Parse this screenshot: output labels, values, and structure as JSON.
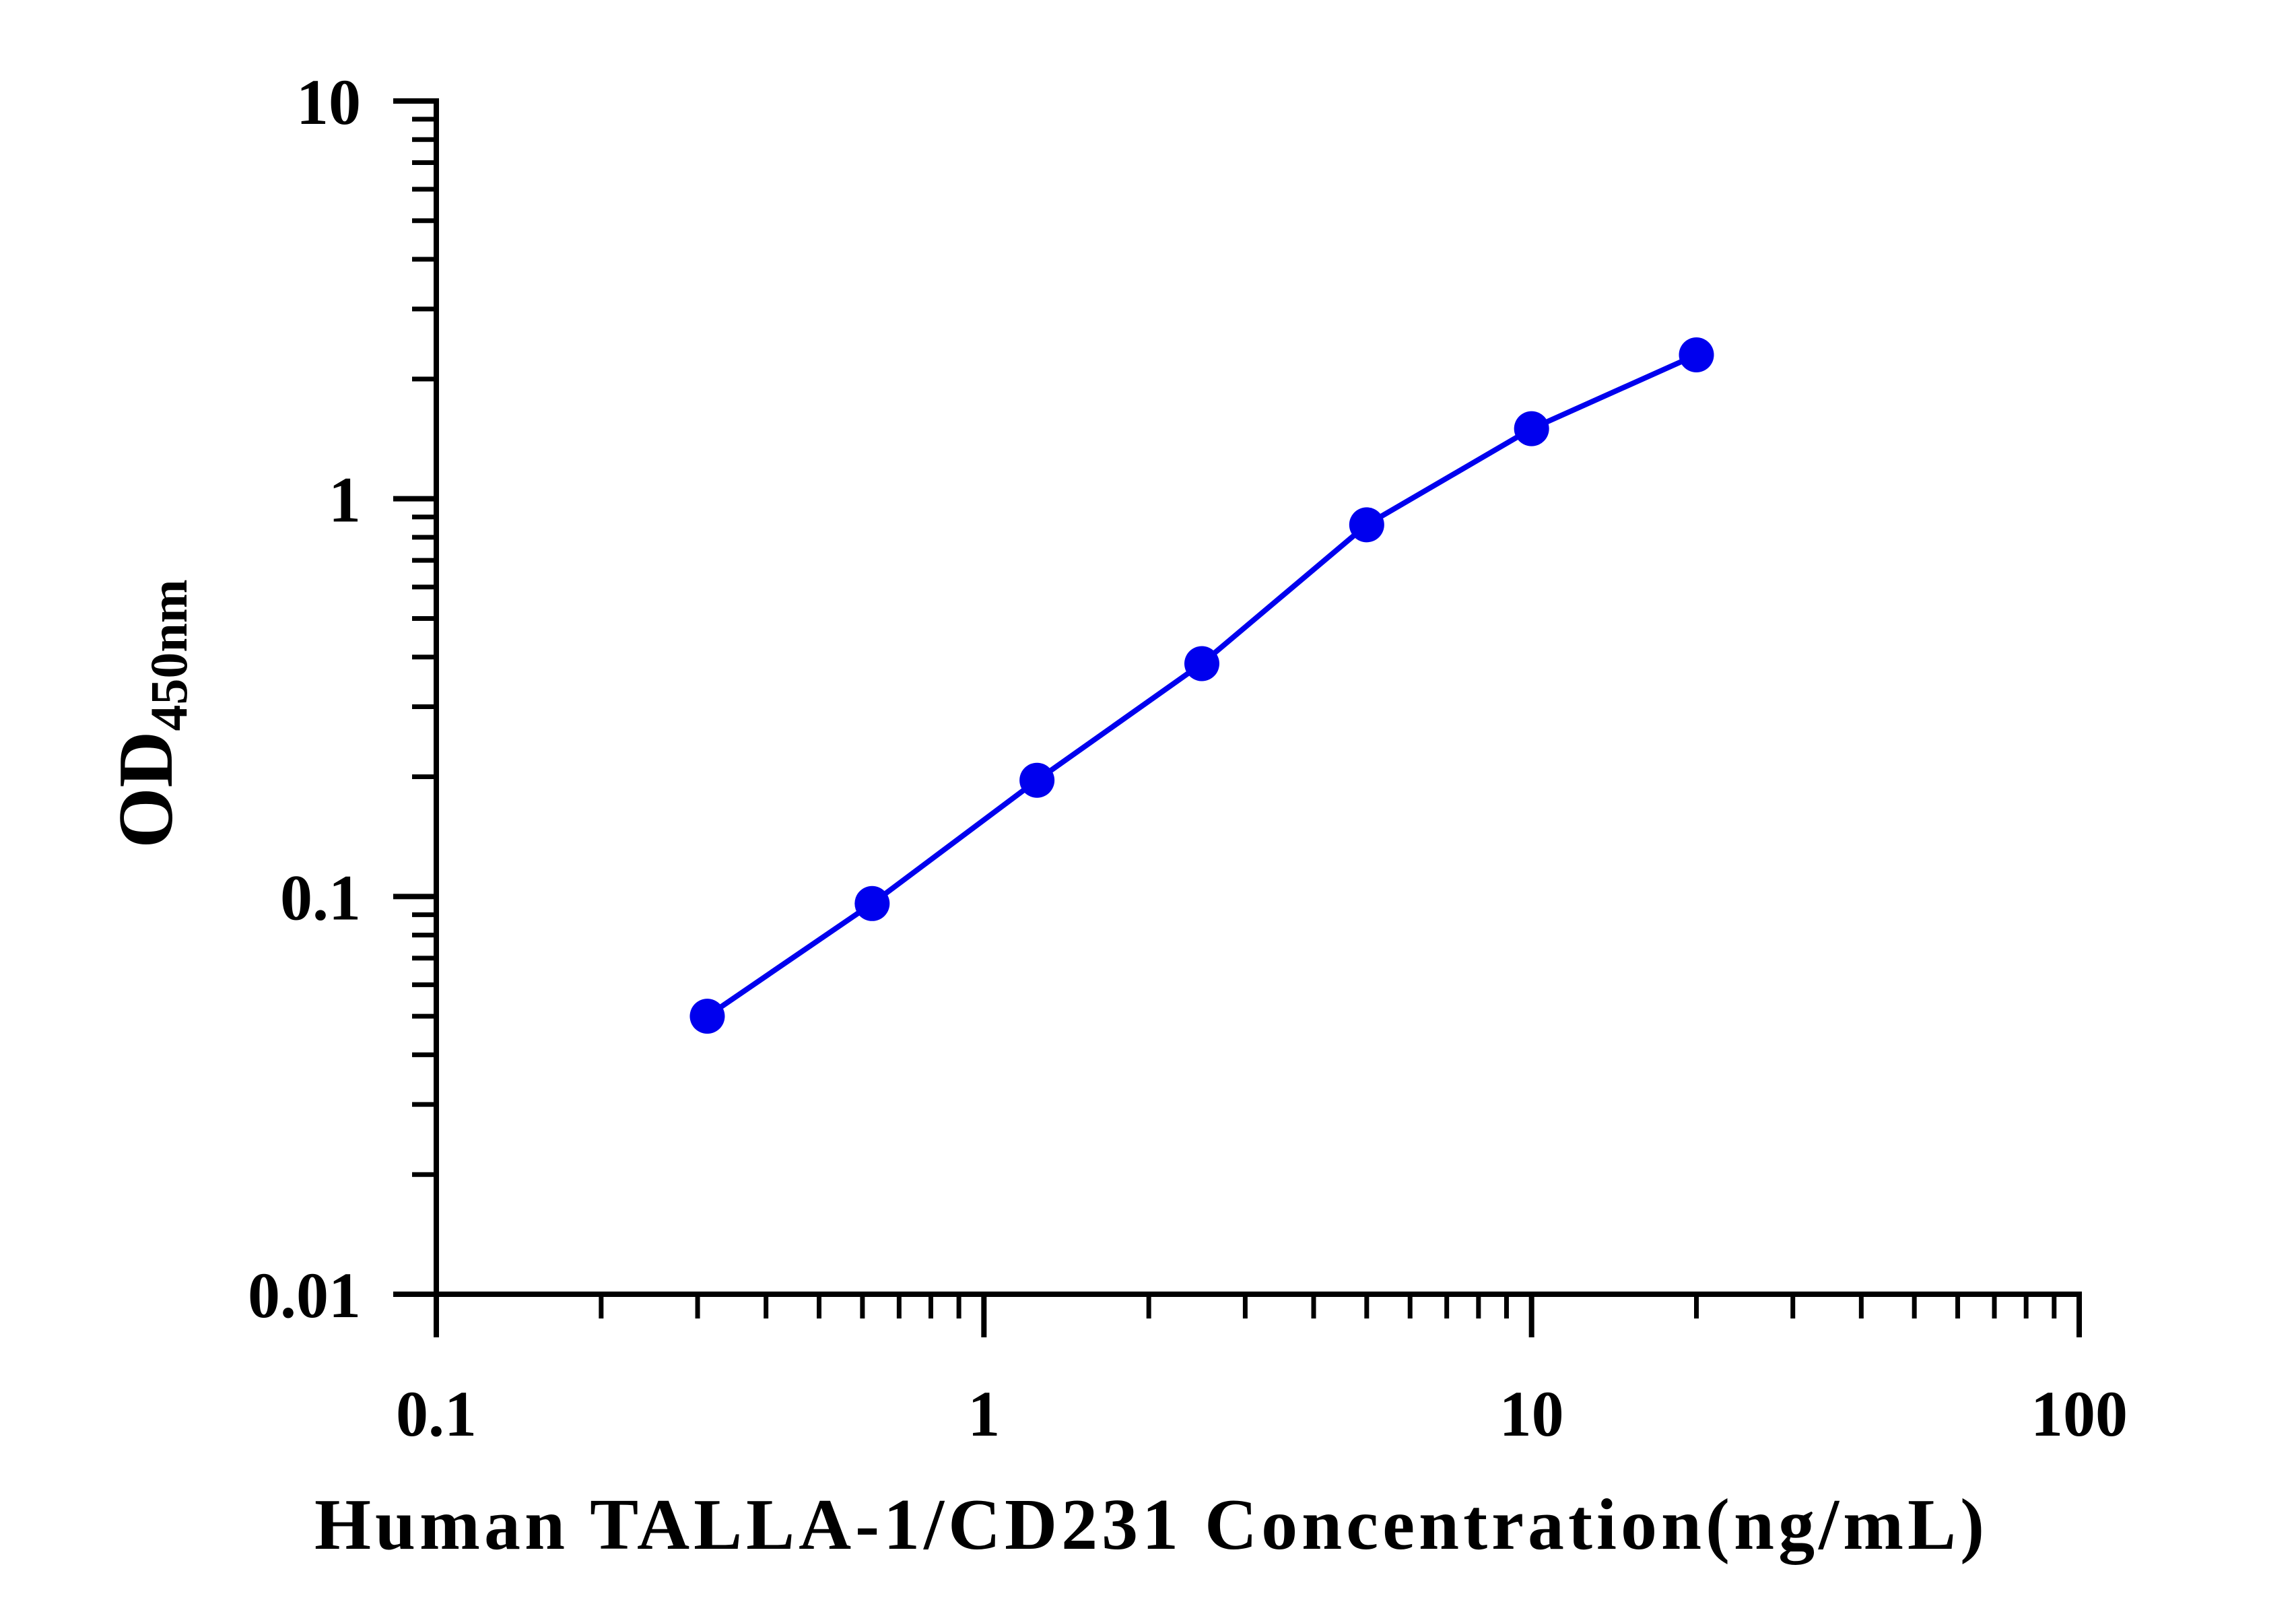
{
  "chart_data": {
    "type": "line",
    "xlabel": "Human TALLA-1/CD231 Concentration(ng/mL)",
    "ylabel_main": "OD",
    "ylabel_sub": "450nm",
    "x_scale": "log",
    "y_scale": "log",
    "xlim": [
      0.1,
      100
    ],
    "ylim": [
      0.01,
      10
    ],
    "x_ticks": [
      {
        "value": 0.1,
        "label": "0.1"
      },
      {
        "value": 1,
        "label": "1"
      },
      {
        "value": 10,
        "label": "10"
      },
      {
        "value": 100,
        "label": "100"
      }
    ],
    "y_ticks": [
      {
        "value": 0.01,
        "label": "0.01"
      },
      {
        "value": 0.1,
        "label": "0.1"
      },
      {
        "value": 1,
        "label": "1"
      },
      {
        "value": 10,
        "label": "10"
      }
    ],
    "grid": false,
    "legend": "none",
    "series": [
      {
        "color": "#0000ee",
        "marker": "circle",
        "x": [
          0.3125,
          0.625,
          1.25,
          2.5,
          5,
          10,
          20
        ],
        "y": [
          0.05,
          0.096,
          0.196,
          0.385,
          0.86,
          1.5,
          2.3
        ]
      }
    ]
  }
}
